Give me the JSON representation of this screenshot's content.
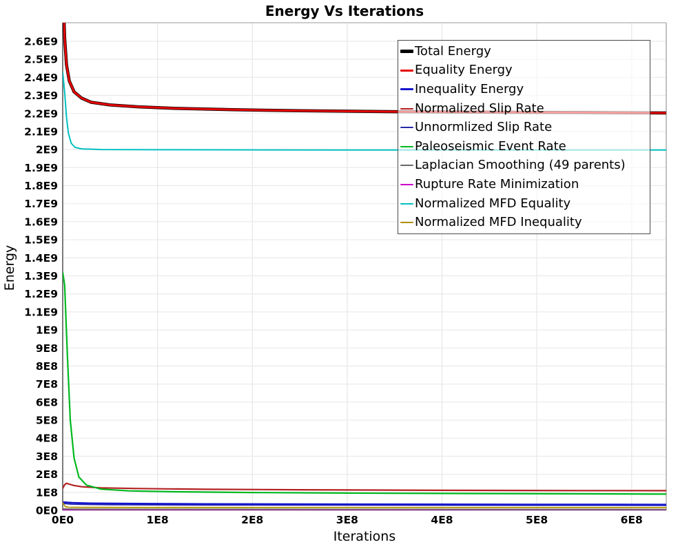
{
  "chart": {
    "title": "Energy Vs Iterations",
    "x_label": "Iterations",
    "y_label": "Energy"
  },
  "chart_data": {
    "type": "line",
    "title": "Energy Vs Iterations",
    "xlabel": "Iterations",
    "ylabel": "Energy",
    "xlim": [
      0,
      636500000
    ],
    "ylim": [
      0,
      2703000000
    ],
    "grid": true,
    "legend_position": "upper-right-inside",
    "x_ticks": [
      {
        "value": 0,
        "label": "0E0"
      },
      {
        "value": 100000000,
        "label": "1E8"
      },
      {
        "value": 200000000,
        "label": "2E8"
      },
      {
        "value": 300000000,
        "label": "3E8"
      },
      {
        "value": 400000000,
        "label": "4E8"
      },
      {
        "value": 500000000,
        "label": "5E8"
      },
      {
        "value": 600000000,
        "label": "6E8"
      }
    ],
    "y_ticks": [
      {
        "value": 0,
        "label": "0E0"
      },
      {
        "value": 100000000,
        "label": "1E8"
      },
      {
        "value": 200000000,
        "label": "2E8"
      },
      {
        "value": 300000000,
        "label": "3E8"
      },
      {
        "value": 400000000,
        "label": "4E8"
      },
      {
        "value": 500000000,
        "label": "5E8"
      },
      {
        "value": 600000000,
        "label": "6E8"
      },
      {
        "value": 700000000,
        "label": "7E8"
      },
      {
        "value": 800000000,
        "label": "8E8"
      },
      {
        "value": 900000000,
        "label": "9E8"
      },
      {
        "value": 1000000000,
        "label": "1E9"
      },
      {
        "value": 1100000000,
        "label": "1.1E9"
      },
      {
        "value": 1200000000,
        "label": "1.2E9"
      },
      {
        "value": 1300000000,
        "label": "1.3E9"
      },
      {
        "value": 1400000000,
        "label": "1.4E9"
      },
      {
        "value": 1500000000,
        "label": "1.5E9"
      },
      {
        "value": 1600000000,
        "label": "1.6E9"
      },
      {
        "value": 1700000000,
        "label": "1.7E9"
      },
      {
        "value": 1800000000,
        "label": "1.8E9"
      },
      {
        "value": 1900000000,
        "label": "1.9E9"
      },
      {
        "value": 2000000000,
        "label": "2E9"
      },
      {
        "value": 2100000000,
        "label": "2.1E9"
      },
      {
        "value": 2200000000,
        "label": "2.2E9"
      },
      {
        "value": 2300000000,
        "label": "2.3E9"
      },
      {
        "value": 2400000000,
        "label": "2.4E9"
      },
      {
        "value": 2500000000,
        "label": "2.5E9"
      },
      {
        "value": 2600000000,
        "label": "2.6E9"
      }
    ],
    "series": [
      {
        "name": "Total Energy",
        "color": "#000000",
        "width": 4.5,
        "z": 9,
        "points": [
          [
            0,
            2950000000
          ],
          [
            2000000,
            2620000000
          ],
          [
            4000000,
            2470000000
          ],
          [
            7000000,
            2380000000
          ],
          [
            12000000,
            2320000000
          ],
          [
            20000000,
            2285000000
          ],
          [
            30000000,
            2262000000
          ],
          [
            50000000,
            2247000000
          ],
          [
            80000000,
            2237000000
          ],
          [
            120000000,
            2228000000
          ],
          [
            180000000,
            2221000000
          ],
          [
            250000000,
            2215000000
          ],
          [
            350000000,
            2210000000
          ],
          [
            450000000,
            2207000000
          ],
          [
            550000000,
            2205000000
          ],
          [
            636500000,
            2203000000
          ]
        ]
      },
      {
        "name": "Equality Energy",
        "color": "#e60000",
        "width": 3,
        "z": 10,
        "points": [
          [
            0,
            2950000000
          ],
          [
            2000000,
            2620000000
          ],
          [
            4000000,
            2470000000
          ],
          [
            7000000,
            2380000000
          ],
          [
            12000000,
            2320000000
          ],
          [
            20000000,
            2285000000
          ],
          [
            30000000,
            2262000000
          ],
          [
            50000000,
            2247000000
          ],
          [
            80000000,
            2237000000
          ],
          [
            120000000,
            2228000000
          ],
          [
            180000000,
            2221000000
          ],
          [
            250000000,
            2215000000
          ],
          [
            350000000,
            2210000000
          ],
          [
            450000000,
            2207000000
          ],
          [
            550000000,
            2205000000
          ],
          [
            636500000,
            2203000000
          ]
        ]
      },
      {
        "name": "Inequality Energy",
        "color": "#1515cd",
        "width": 2.5,
        "z": 4,
        "points": [
          [
            0,
            46000000
          ],
          [
            10000000,
            42000000
          ],
          [
            30000000,
            39000000
          ],
          [
            80000000,
            37000000
          ],
          [
            150000000,
            35500000
          ],
          [
            300000000,
            34000000
          ],
          [
            450000000,
            33000000
          ],
          [
            636500000,
            32000000
          ]
        ]
      },
      {
        "name": "Normalized Slip Rate",
        "color": "#b22020",
        "width": 2.2,
        "z": 6,
        "points": [
          [
            0,
            122000000
          ],
          [
            2000000,
            142000000
          ],
          [
            4000000,
            150000000
          ],
          [
            7000000,
            145000000
          ],
          [
            12000000,
            138000000
          ],
          [
            20000000,
            131000000
          ],
          [
            40000000,
            125000000
          ],
          [
            80000000,
            121000000
          ],
          [
            150000000,
            117000000
          ],
          [
            250000000,
            114000000
          ],
          [
            400000000,
            111000000
          ],
          [
            550000000,
            109500000
          ],
          [
            636500000,
            109000000
          ]
        ]
      },
      {
        "name": "Unnormlized Slip Rate",
        "color": "#2828a8",
        "width": 1.8,
        "z": 3,
        "points": [
          [
            0,
            38000000
          ],
          [
            10000000,
            34000000
          ],
          [
            50000000,
            31000000
          ],
          [
            150000000,
            29500000
          ],
          [
            300000000,
            28500000
          ],
          [
            636500000,
            27500000
          ]
        ]
      },
      {
        "name": "Paleoseismic Event Rate",
        "color": "#00b81e",
        "width": 2.2,
        "z": 7,
        "points": [
          [
            0,
            1320000000
          ],
          [
            2000000,
            1250000000
          ],
          [
            5000000,
            850000000
          ],
          [
            8000000,
            500000000
          ],
          [
            12000000,
            290000000
          ],
          [
            17000000,
            185000000
          ],
          [
            25000000,
            140000000
          ],
          [
            40000000,
            118000000
          ],
          [
            70000000,
            108000000
          ],
          [
            120000000,
            103000000
          ],
          [
            200000000,
            99000000
          ],
          [
            300000000,
            96000000
          ],
          [
            450000000,
            93000000
          ],
          [
            636500000,
            90000000
          ]
        ]
      },
      {
        "name": "Laplacian Smoothing (49 parents)",
        "color": "#666666",
        "width": 1.8,
        "z": 2,
        "points": [
          [
            0,
            8000000
          ],
          [
            20000000,
            6500000
          ],
          [
            100000000,
            6000000
          ],
          [
            636500000,
            5500000
          ]
        ]
      },
      {
        "name": "Rupture Rate Minimization",
        "color": "#cc00cc",
        "width": 1.8,
        "z": 1,
        "points": [
          [
            0,
            3000000
          ],
          [
            100000000,
            2500000
          ],
          [
            636500000,
            2200000
          ]
        ]
      },
      {
        "name": "Normalized MFD Equality",
        "color": "#00bfbf",
        "width": 2,
        "z": 8,
        "points": [
          [
            0,
            2430000000
          ],
          [
            2000000,
            2320000000
          ],
          [
            4000000,
            2180000000
          ],
          [
            6000000,
            2090000000
          ],
          [
            9000000,
            2035000000
          ],
          [
            13000000,
            2012000000
          ],
          [
            20000000,
            2004000000
          ],
          [
            40000000,
            2000000000
          ],
          [
            100000000,
            1999000000
          ],
          [
            300000000,
            1998000000
          ],
          [
            636500000,
            1998000000
          ]
        ]
      },
      {
        "name": "Normalized MFD Inequality",
        "color": "#b09000",
        "width": 1.8,
        "z": 5,
        "points": [
          [
            0,
            43000000
          ],
          [
            1500000,
            30000000
          ],
          [
            3000000,
            20000000
          ],
          [
            6000000,
            17500000
          ],
          [
            20000000,
            16500000
          ],
          [
            100000000,
            16000000
          ],
          [
            300000000,
            15800000
          ],
          [
            636500000,
            15500000
          ]
        ]
      }
    ]
  },
  "style_colors": {
    "grid_horizontal": "#ebebeb",
    "grid_vertical": "#e6e6e6",
    "spine_left": "#7a7a7a",
    "spine_other": "#bcbcbc",
    "tick_label": "#000000"
  }
}
